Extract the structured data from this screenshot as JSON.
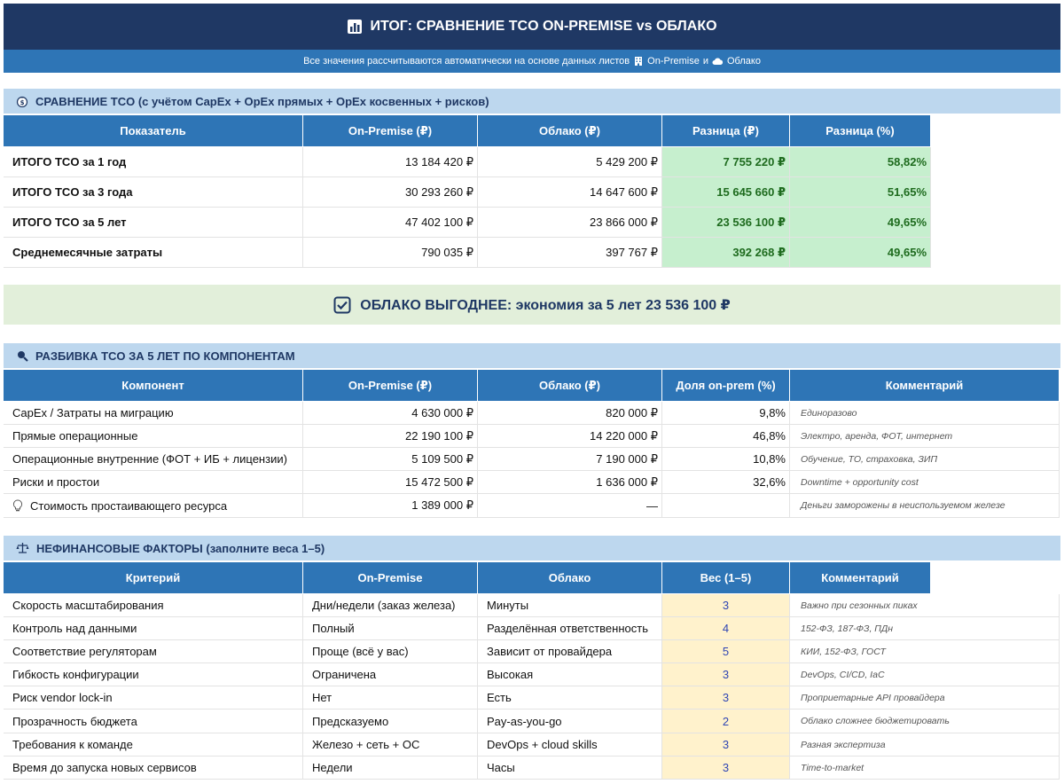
{
  "title": "ИТОГ: СРАВНЕНИЕ TCO ON-PREMISE vs ОБЛАКО",
  "subtitle": {
    "prefix": "Все значения рассчитываются автоматически на основе данных листов",
    "sheet1": "On-Premise",
    "conj": "и",
    "sheet2": "Облако"
  },
  "tco": {
    "section_title": "СРАВНЕНИЕ TCO (с учётом CapEx + OpEx прямых + OpEx косвенных + рисков)",
    "headers": [
      "Показатель",
      "On-Premise (₽)",
      "Облако (₽)",
      "Разница (₽)",
      "Разница (%)"
    ],
    "rows": [
      {
        "label": "ИТОГО TCO за 1 год",
        "onprem": "13 184 420 ₽",
        "cloud": "5 429 200 ₽",
        "diff": "7 755 220 ₽",
        "pct": "58,82%"
      },
      {
        "label": "ИТОГО TCO за 3 года",
        "onprem": "30 293 260 ₽",
        "cloud": "14 647 600 ₽",
        "diff": "15 645 660 ₽",
        "pct": "51,65%"
      },
      {
        "label": "ИТОГО TCO за 5 лет",
        "onprem": "47 402 100 ₽",
        "cloud": "23 866 000 ₽",
        "diff": "23 536 100 ₽",
        "pct": "49,65%"
      },
      {
        "label": "Среднемесячные затраты",
        "onprem": "790 035 ₽",
        "cloud": "397 767 ₽",
        "diff": "392 268 ₽",
        "pct": "49,65%"
      }
    ]
  },
  "banner": "ОБЛАКО ВЫГОДНЕЕ: экономия за 5 лет 23 536 100 ₽",
  "breakdown": {
    "section_title": "РАЗБИВКА TCO ЗА 5 ЛЕТ ПО КОМПОНЕНТАМ",
    "headers": [
      "Компонент",
      "On-Premise (₽)",
      "Облако (₽)",
      "Доля on-prem (%)",
      "Комментарий"
    ],
    "rows": [
      {
        "label": "CapEx / Затраты на миграцию",
        "onprem": "4 630 000 ₽",
        "cloud": "820 000 ₽",
        "share": "9,8%",
        "comment": "Единоразово"
      },
      {
        "label": "Прямые операционные",
        "onprem": "22 190 100 ₽",
        "cloud": "14 220 000 ₽",
        "share": "46,8%",
        "comment": "Электро, аренда, ФОТ, интернет"
      },
      {
        "label": "Операционные внутренние (ФОТ + ИБ + лицензии)",
        "onprem": "5 109 500 ₽",
        "cloud": "7 190 000 ₽",
        "share": "10,8%",
        "comment": "Обучение, ТО, страховка, ЗИП"
      },
      {
        "label": "Риски и простои",
        "onprem": "15 472 500 ₽",
        "cloud": "1 636 000 ₽",
        "share": "32,6%",
        "comment": "Downtime + opportunity cost"
      },
      {
        "label": "Стоимость простаивающего ресурса",
        "onprem": "1 389 000 ₽",
        "cloud": "—",
        "share": "",
        "comment": "Деньги заморожены в неиспользуемом железе"
      }
    ]
  },
  "nonfin": {
    "section_title": "НЕФИНАНСОВЫЕ ФАКТОРЫ (заполните веса 1–5)",
    "headers": [
      "Критерий",
      "On-Premise",
      "Облако",
      "Вес (1–5)",
      "Комментарий"
    ],
    "rows": [
      {
        "label": "Скорость масштабирования",
        "onprem": "Дни/недели (заказ железа)",
        "cloud": "Минуты",
        "weight": "3",
        "comment": "Важно при сезонных пиках"
      },
      {
        "label": "Контроль над данными",
        "onprem": "Полный",
        "cloud": "Разделённая ответственность",
        "weight": "4",
        "comment": "152-ФЗ, 187-ФЗ, ПДн"
      },
      {
        "label": "Соответствие регуляторам",
        "onprem": "Проще (всё у вас)",
        "cloud": "Зависит от провайдера",
        "weight": "5",
        "comment": "КИИ, 152-ФЗ, ГОСТ"
      },
      {
        "label": "Гибкость конфигурации",
        "onprem": "Ограничена",
        "cloud": "Высокая",
        "weight": "3",
        "comment": "DevOps, CI/CD, IaC"
      },
      {
        "label": "Риск vendor lock-in",
        "onprem": "Нет",
        "cloud": "Есть",
        "weight": "3",
        "comment": "Проприетарные API провайдера"
      },
      {
        "label": "Прозрачность бюджета",
        "onprem": "Предсказуемо",
        "cloud": "Pay-as-you-go",
        "weight": "2",
        "comment": "Облако сложнее бюджетировать"
      },
      {
        "label": "Требования к команде",
        "onprem": "Железо + сеть + ОС",
        "cloud": "DevOps + cloud skills",
        "weight": "3",
        "comment": "Разная экспертиза"
      },
      {
        "label": "Время до запуска новых сервисов",
        "onprem": "Недели",
        "cloud": "Часы",
        "weight": "3",
        "comment": "Time-to-market"
      }
    ]
  }
}
